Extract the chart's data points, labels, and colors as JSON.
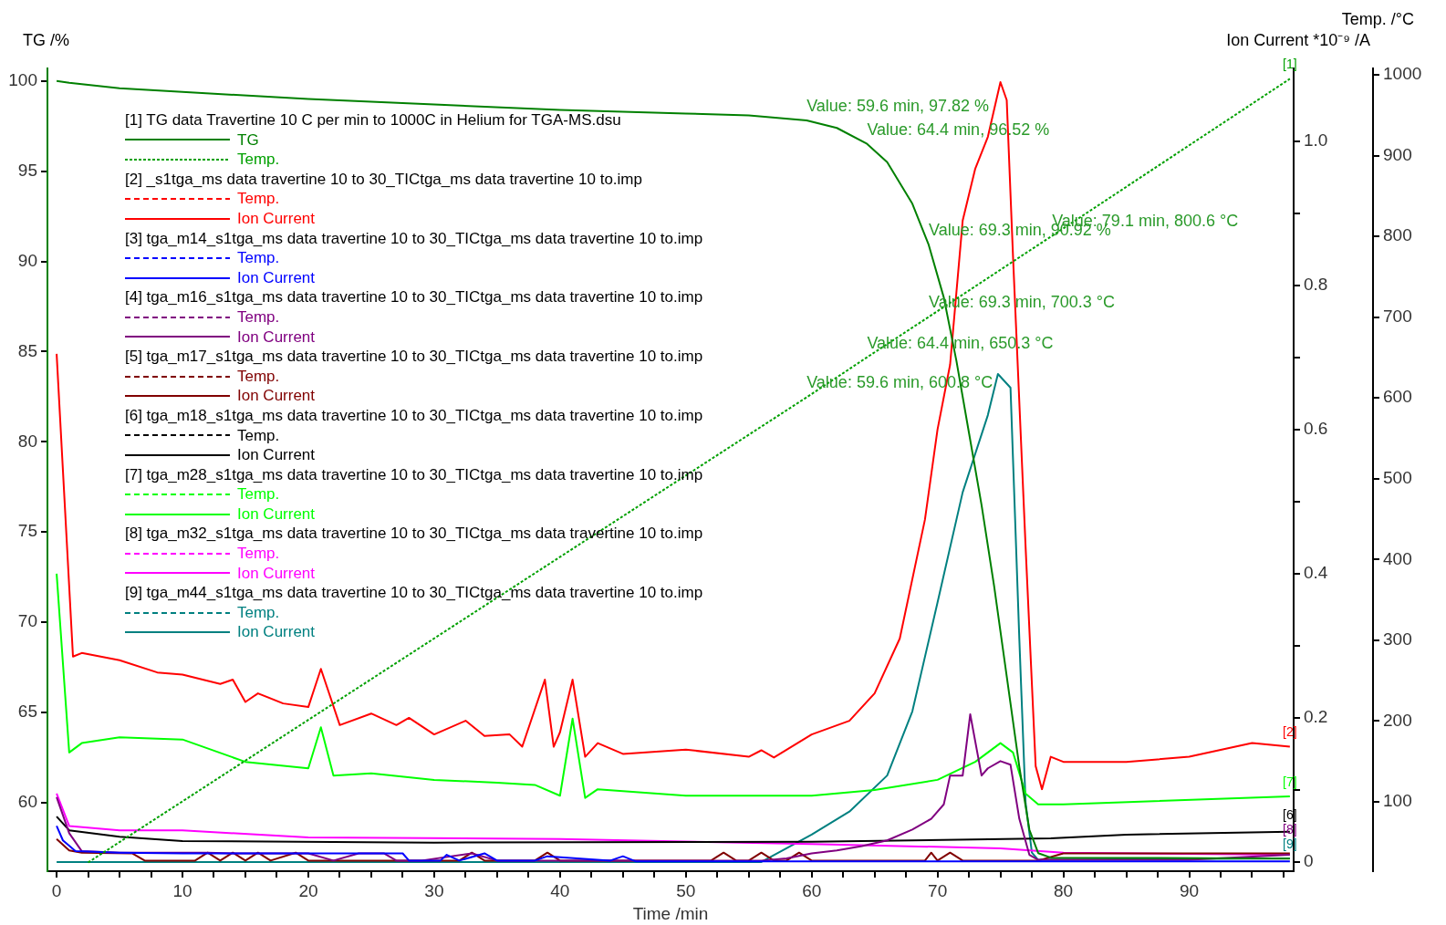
{
  "chart_data": {
    "type": "line",
    "xlabel": "Time /min",
    "ylabel": "TG /%",
    "y2label": "Ion Current *10⁻⁹ /A",
    "y3label": "Temp. /°C",
    "legend": "top left",
    "xlim": [
      -0.73,
      98.3
    ],
    "xticks": [
      0,
      {
        "value": 2.5,
        "label": null
      },
      {
        "value": 5,
        "label": null
      },
      {
        "value": 7.5,
        "label": null
      },
      10,
      {
        "value": 12.5,
        "label": null
      },
      {
        "value": 15,
        "label": null
      },
      {
        "value": 17.5,
        "label": null
      },
      20,
      {
        "value": 22.5,
        "label": null
      },
      {
        "value": 25,
        "label": null
      },
      {
        "value": 27.5,
        "label": null
      },
      30,
      {
        "value": 32.5,
        "label": null
      },
      {
        "value": 35,
        "label": null
      },
      {
        "value": 37.5,
        "label": null
      },
      40,
      {
        "value": 42.5,
        "label": null
      },
      {
        "value": 45,
        "label": null
      },
      {
        "value": 47.5,
        "label": null
      },
      50,
      {
        "value": 52.5,
        "label": null
      },
      {
        "value": 55,
        "label": null
      },
      {
        "value": 57.5,
        "label": null
      },
      60,
      {
        "value": 62.5,
        "label": null
      },
      {
        "value": 65,
        "label": null
      },
      {
        "value": 67.5,
        "label": null
      },
      70,
      {
        "value": 72.5,
        "label": null
      },
      {
        "value": 75,
        "label": null
      },
      {
        "value": 77.5,
        "label": null
      },
      80,
      {
        "value": 82.5,
        "label": null
      },
      {
        "value": 85,
        "label": null
      },
      {
        "value": 87.5,
        "label": null
      },
      90,
      {
        "value": 92.5,
        "label": null
      },
      {
        "value": 95,
        "label": null
      },
      {
        "value": 97.5,
        "label": null
      }
    ],
    "ylim": [
      56.2,
      100.7
    ],
    "yticks": [
      60,
      65,
      70,
      75,
      80,
      85,
      90,
      95,
      100
    ],
    "y2lim": [
      -0.0127,
      1.101
    ],
    "y2ticks": [
      0,
      {
        "value": 0.1,
        "label": null
      },
      0.2,
      {
        "value": 0.3,
        "label": null
      },
      0.4,
      {
        "value": 0.5,
        "label": null
      },
      0.6,
      {
        "value": 0.7,
        "label": null
      },
      0.8,
      {
        "value": 0.9,
        "label": null
      },
      {
        "value": 1,
        "label": "1.0"
      }
    ],
    "y3lim": [
      14.2,
      1007.9
    ],
    "y3ticks": [
      100,
      200,
      300,
      400,
      500,
      600,
      700,
      800,
      900,
      1000
    ],
    "series": [
      {
        "name": "TG",
        "color": "#008000",
        "line_style": "solid",
        "x": [
          0,
          1,
          5,
          10,
          20,
          30,
          40,
          50,
          55,
          59.6,
          62,
          64.4,
          66,
          68,
          69.3,
          70.5,
          71.5,
          72.5,
          73.5,
          74.5,
          75.5,
          76.5,
          77.3,
          78,
          79,
          98
        ],
        "values": [
          100,
          99.9,
          99.6,
          99.4,
          99.0,
          98.7,
          98.4,
          98.2,
          98.1,
          97.82,
          97.4,
          96.52,
          95.5,
          93.2,
          90.92,
          88,
          84.5,
          80.5,
          76.5,
          72,
          67,
          62,
          58.5,
          57.2,
          56.95,
          56.9
        ]
      },
      {
        "name": "Temp.",
        "color": "#00a000",
        "line_style": "dotted",
        "axis": "y3",
        "x": [
          2.5,
          59.6,
          64.4,
          69.3,
          79.1,
          98
        ],
        "values": [
          25,
          600.8,
          650.3,
          700.3,
          800.6,
          995
        ]
      },
      {
        "name": "Temp.",
        "color": "#ff0000",
        "line_style": "dashed",
        "axis": "y3"
      },
      {
        "name": "Ion Current",
        "color": "#ff0000",
        "line_style": "solid",
        "axis": "y2",
        "x": [
          0,
          1.3,
          2,
          5,
          8,
          10,
          13,
          14,
          15,
          16,
          18,
          20,
          21,
          22.5,
          25,
          27,
          28,
          30,
          32.5,
          34,
          36,
          37,
          38.8,
          39.5,
          40,
          41,
          42,
          43,
          45,
          50,
          55,
          56,
          57,
          60,
          63,
          65,
          67,
          69,
          70,
          71,
          72,
          73,
          74,
          75,
          75.5,
          76,
          77,
          77.8,
          78.3,
          79,
          80,
          85,
          90,
          95,
          98
        ],
        "values": [
          0.705,
          0.285,
          0.29,
          0.28,
          0.263,
          0.26,
          0.247,
          0.253,
          0.222,
          0.234,
          0.22,
          0.215,
          0.268,
          0.19,
          0.206,
          0.19,
          0.2,
          0.177,
          0.196,
          0.175,
          0.177,
          0.16,
          0.253,
          0.16,
          0.18,
          0.253,
          0.146,
          0.165,
          0.15,
          0.156,
          0.146,
          0.155,
          0.145,
          0.177,
          0.196,
          0.234,
          0.31,
          0.475,
          0.6,
          0.69,
          0.89,
          0.962,
          1.006,
          1.082,
          1.057,
          0.84,
          0.437,
          0.133,
          0.101,
          0.146,
          0.139,
          0.139,
          0.146,
          0.165,
          0.16
        ]
      },
      {
        "name": "Temp.",
        "color": "#0000ff",
        "line_style": "dashed",
        "axis": "y3"
      },
      {
        "name": "Ion Current",
        "color": "#0000ff",
        "line_style": "solid",
        "axis": "y2",
        "x": [
          0,
          0.5,
          1.5,
          5,
          10,
          20,
          27.5,
          28,
          30.5,
          31,
          32,
          34,
          35,
          38,
          39,
          44,
          45,
          46,
          60,
          98
        ],
        "values": [
          0.05,
          0.03,
          0.015,
          0.013,
          0.012,
          0.012,
          0.012,
          0.002,
          0.002,
          0.01,
          0.002,
          0.012,
          0.002,
          0.002,
          0.008,
          0.002,
          0.008,
          0.001,
          0.001,
          0.001
        ]
      },
      {
        "name": "Temp.",
        "color": "#800080",
        "line_style": "dashed",
        "axis": "y3"
      },
      {
        "name": "Ion Current",
        "color": "#800080",
        "line_style": "solid",
        "axis": "y2",
        "x": [
          0,
          1,
          2,
          5,
          7,
          10,
          12,
          14,
          20,
          22,
          24,
          25,
          26,
          27,
          28,
          29,
          33,
          35,
          40,
          45,
          50,
          56,
          58,
          60,
          62,
          64,
          66,
          68,
          69.5,
          70.5,
          71,
          72,
          72.6,
          73.5,
          74,
          75,
          75.8,
          76.5,
          77.3,
          78,
          90,
          98
        ],
        "values": [
          0.09,
          0.04,
          0.015,
          0.013,
          0.013,
          0.013,
          0.013,
          0.012,
          0.012,
          0.002,
          0.012,
          0.012,
          0.012,
          0.002,
          0.002,
          0.002,
          0.012,
          0.002,
          0.002,
          0.002,
          0.002,
          0.002,
          0.005,
          0.012,
          0.016,
          0.022,
          0.03,
          0.045,
          0.06,
          0.08,
          0.12,
          0.12,
          0.205,
          0.12,
          0.13,
          0.14,
          0.135,
          0.06,
          0.01,
          0.003,
          0.003,
          0.01
        ]
      },
      {
        "name": "Temp.",
        "color": "#800000",
        "line_style": "dashed",
        "axis": "y3"
      },
      {
        "name": "Ion Current",
        "color": "#800000",
        "line_style": "solid",
        "axis": "y2",
        "x": [
          0,
          1,
          2,
          6,
          7,
          11,
          12,
          13,
          14,
          15,
          16,
          17,
          19,
          20,
          21,
          32,
          33,
          34,
          38,
          39,
          40,
          52,
          53,
          54,
          55,
          56,
          57,
          58,
          59,
          60,
          69,
          69.5,
          70,
          71,
          72,
          73,
          78,
          80,
          98
        ],
        "values": [
          0.032,
          0.016,
          0.013,
          0.012,
          0.002,
          0.002,
          0.013,
          0.002,
          0.013,
          0.002,
          0.013,
          0.002,
          0.013,
          0.002,
          0.002,
          0.002,
          0.013,
          0.002,
          0.002,
          0.013,
          0.002,
          0.002,
          0.013,
          0.002,
          0.002,
          0.013,
          0.002,
          0.002,
          0.013,
          0.002,
          0.002,
          0.013,
          0.002,
          0.013,
          0.002,
          0.002,
          0.002,
          0.012,
          0.012
        ]
      },
      {
        "name": "Temp.",
        "color": "#000000",
        "line_style": "dashed",
        "axis": "y3"
      },
      {
        "name": "Ion Current",
        "color": "#000000",
        "line_style": "solid",
        "axis": "y2",
        "x": [
          0,
          1,
          5,
          10,
          30,
          60,
          79,
          85,
          98
        ],
        "values": [
          0.063,
          0.044,
          0.035,
          0.029,
          0.027,
          0.028,
          0.033,
          0.038,
          0.042
        ]
      },
      {
        "name": "Temp.",
        "color": "#00ff00",
        "line_style": "dashed",
        "axis": "y3"
      },
      {
        "name": "Ion Current",
        "color": "#00ff00",
        "line_style": "solid",
        "axis": "y2",
        "x": [
          0,
          1,
          2,
          5,
          10,
          15,
          20,
          21,
          22,
          25,
          30,
          35,
          38,
          40,
          41,
          42,
          43,
          50,
          60,
          65,
          70,
          73,
          75,
          76,
          77,
          78,
          80,
          98
        ],
        "values": [
          0.4,
          0.152,
          0.165,
          0.173,
          0.17,
          0.139,
          0.13,
          0.187,
          0.12,
          0.123,
          0.114,
          0.11,
          0.107,
          0.092,
          0.199,
          0.089,
          0.101,
          0.092,
          0.092,
          0.1,
          0.114,
          0.139,
          0.165,
          0.152,
          0.095,
          0.08,
          0.08,
          0.091
        ]
      },
      {
        "name": "Temp.",
        "color": "#ff00ff",
        "line_style": "dashed",
        "axis": "y3"
      },
      {
        "name": "Ion Current",
        "color": "#ff00ff",
        "line_style": "solid",
        "axis": "y2",
        "x": [
          0,
          1,
          5,
          10,
          20,
          40,
          60,
          75,
          80,
          98
        ],
        "values": [
          0.095,
          0.05,
          0.044,
          0.044,
          0.034,
          0.032,
          0.025,
          0.019,
          0.013,
          0.01
        ]
      },
      {
        "name": "Temp.",
        "color": "#008080",
        "line_style": "dashed",
        "axis": "y3"
      },
      {
        "name": "Ion Current",
        "color": "#008080",
        "line_style": "solid",
        "axis": "y2",
        "x": [
          0,
          56,
          60,
          63,
          66,
          68,
          70,
          72,
          74,
          74.8,
          75.8,
          76.5,
          77,
          77.5,
          78,
          98
        ],
        "values": [
          0,
          0,
          0.038,
          0.07,
          0.12,
          0.209,
          0.36,
          0.513,
          0.62,
          0.677,
          0.658,
          0.31,
          0.082,
          0.013,
          0.003,
          0.005
        ]
      }
    ],
    "annotations": [
      "[1] TG data Travertine 10 C per min to 1000C in Helium for TGA-MS.dsu",
      "[2] _s1tga_ms data travertine 10 to 30_TICtga_ms data travertine 10 to.imp",
      "[3] tga_m14_s1tga_ms data travertine 10 to 30_TICtga_ms data travertine 10 to.imp",
      "[4] tga_m16_s1tga_ms data travertine 10 to 30_TICtga_ms data travertine 10 to.imp",
      "[5] tga_m17_s1tga_ms data travertine 10 to 30_TICtga_ms data travertine 10 to.imp",
      "[6] tga_m18_s1tga_ms data travertine 10 to 30_TICtga_ms data travertine 10 to.imp",
      "[7] tga_m28_s1tga_ms data travertine 10 to 30_TICtga_ms data travertine 10 to.imp",
      "[8] tga_m32_s1tga_ms data travertine 10 to 30_TICtga_ms data travertine 10 to.imp",
      "[9] tga_m44_s1tga_ms data travertine 10 to 30_TICtga_ms data travertine 10 to.imp",
      {
        "text": "Value: 59.6 min, 97.82 %",
        "x": 59.6,
        "y": 97.82
      },
      {
        "text": "Value: 64.4 min, 96.52 %",
        "x": 64.4,
        "y": 96.52
      },
      {
        "text": "Value: 69.3 min, 90.92 %",
        "x": 69.3,
        "y": 90.92
      },
      {
        "text": "Value: 79.1 min, 800.6 °C",
        "x": 79.1,
        "y": 91.42
      },
      {
        "text": "Value: 69.3 min, 700.3 °C",
        "x": 69.3,
        "y": 86.92
      },
      {
        "text": "Value: 64.4 min, 650.3 °C",
        "x": 64.4,
        "y": 84.69
      },
      {
        "text": "Value: 59.6 min, 600.8 °C",
        "x": 59.6,
        "y": 82.47
      },
      {
        "text": "[1]",
        "x": 98,
        "y": 100.12
      },
      {
        "text": "[2]",
        "x": 98,
        "y": 63.1
      },
      {
        "text": "[7]",
        "x": 98,
        "y": 60.34
      },
      {
        "text": "[6]",
        "x": 98,
        "y": 58.39
      },
      {
        "text": "[9]",
        "x": 98,
        "y": 56.91
      },
      {
        "text": "[8]",
        "x": 98,
        "y": 57.11
      }
    ]
  }
}
